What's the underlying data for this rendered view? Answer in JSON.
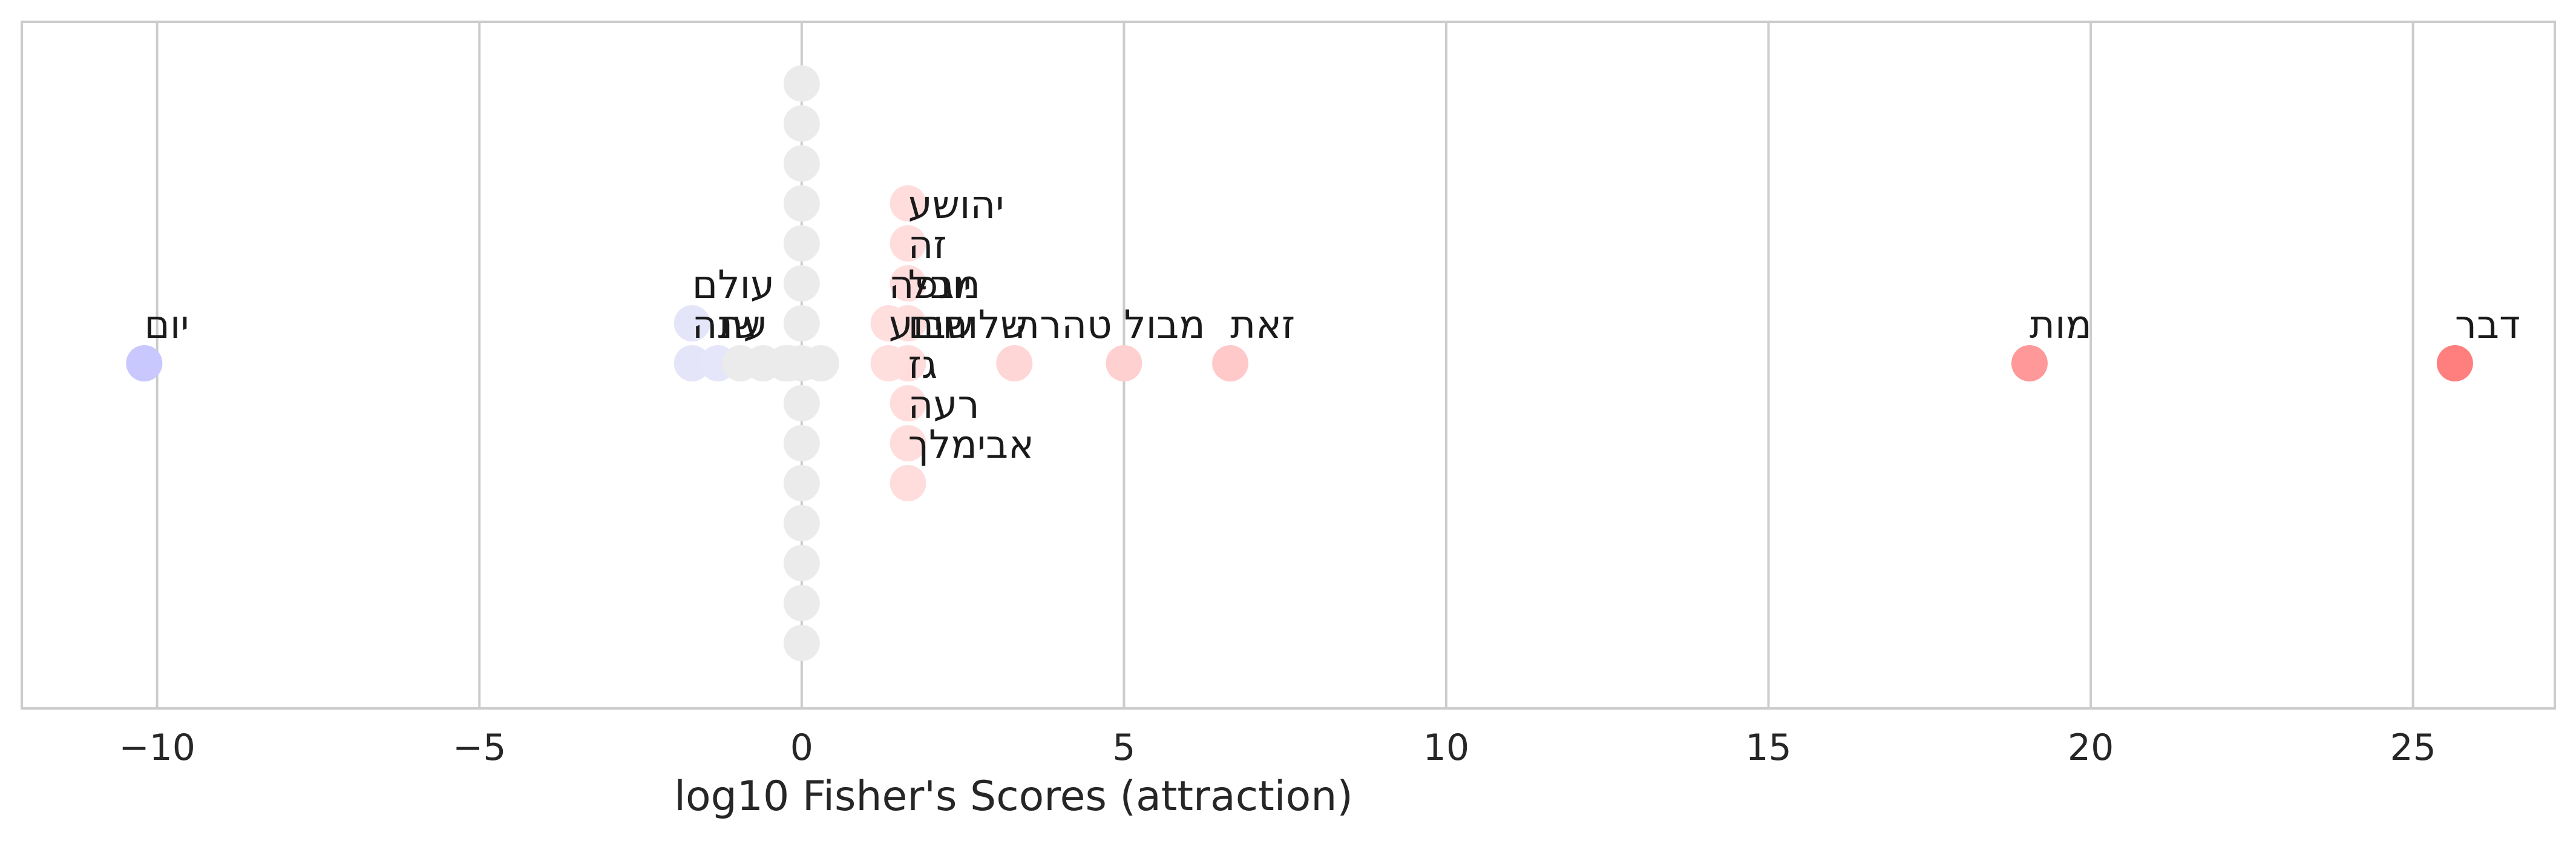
{
  "chart_data": {
    "type": "scatter",
    "title": "",
    "xlabel": "log10 Fisher's Scores (attraction)",
    "ylabel": "",
    "xlim": [
      -12.1,
      27.2
    ],
    "ylim": [
      -1,
      1
    ],
    "x_ticks": [
      -10,
      -5,
      0,
      5,
      10,
      15,
      20,
      25
    ],
    "x_tick_labels": [
      "−10",
      "−5",
      "0",
      "5",
      "10",
      "15",
      "20",
      "25"
    ],
    "grid": "vertical",
    "legend": "none",
    "colors": {
      "negative_max": "#c8c8ff",
      "negative_min": "#e6e6fa",
      "neutral": "#ebebeb",
      "positive_min": "#ffdede",
      "positive_max": "#ff7f7f"
    },
    "labeled_points": [
      {
        "word": "יום",
        "x": -10.2
      },
      {
        "word": "שנה",
        "x": -1.7
      },
      {
        "word": "עולם",
        "x": -1.7
      },
      {
        "word": "עת",
        "x": -1.3
      },
      {
        "word": "שלוחים",
        "x": 1.65
      },
      {
        "word": "יובל",
        "x": 1.65
      },
      {
        "word": "גז",
        "x": 1.65
      },
      {
        "word": "זה",
        "x": 1.65
      },
      {
        "word": "שבוע",
        "x": 1.35
      },
      {
        "word": "מגפה",
        "x": 1.35
      },
      {
        "word": "רעה",
        "x": 1.65
      },
      {
        "word": "יהושע",
        "x": 1.65
      },
      {
        "word": "אבימלך",
        "x": 1.65
      },
      {
        "word": "טהרה",
        "x": 3.3
      },
      {
        "word": "מבול",
        "x": 5.0
      },
      {
        "word": "זאת",
        "x": 6.65
      },
      {
        "word": "מות",
        "x": 19.05
      },
      {
        "word": "דבר",
        "x": 25.65
      }
    ],
    "unlabeled_points": [
      {
        "x": 0.0,
        "n": 15
      },
      {
        "x": 1.65,
        "n": 1
      },
      {
        "x": -0.95,
        "n": 1
      },
      {
        "x": -0.6,
        "n": 1
      },
      {
        "x": -0.2,
        "n": 1
      },
      {
        "x": 0.3,
        "n": 1
      },
      {
        "x": -0.25,
        "n": 1
      }
    ]
  }
}
